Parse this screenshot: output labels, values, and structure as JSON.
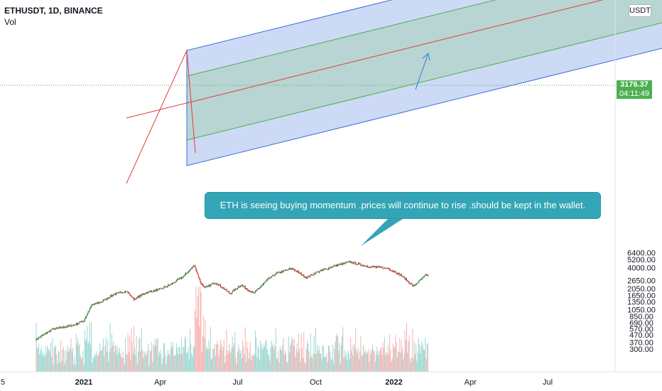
{
  "header": {
    "symbol": "ETHUSDT, 1D, BINANCE",
    "indicator": "Vol"
  },
  "price_scale": {
    "currency": "USDT",
    "last_price": "3176.37",
    "countdown": "04:11:49",
    "ticks": [
      "6400.00",
      "5200.00",
      "4000.00",
      "2650.00",
      "2050.00",
      "1650.00",
      "1350.00",
      "1050.00",
      "850.00",
      "690.00",
      "570.00",
      "470.00",
      "370.00",
      "300.00"
    ]
  },
  "time_scale": {
    "ticks": [
      "5",
      "2021",
      "Apr",
      "Jul",
      "Oct",
      "2022",
      "Apr",
      "Jul"
    ]
  },
  "annotation": {
    "text": "ETH is seeing buying momentum .prices will continue to rise .should be kept in the wallet."
  },
  "colors": {
    "up": "#26a69a",
    "down": "#ef5350",
    "candle_up": "#2e7d32",
    "candle_down": "#c62828",
    "channel_blue": "#3f6fd8",
    "channel_green": "#4caf50",
    "median_red": "#e53935",
    "callout": "#33a5b6"
  },
  "chart_data": {
    "type": "candlestick",
    "title": "ETHUSDT, 1D, BINANCE",
    "y_scale": "log",
    "ylim": [
      260,
      7000
    ],
    "price_path": [
      [
        "2020-11-05",
        400
      ],
      [
        "2020-11-25",
        560
      ],
      [
        "2020-12-20",
        640
      ],
      [
        "2021-01-01",
        740
      ],
      [
        "2021-01-10",
        1200
      ],
      [
        "2021-01-22",
        1350
      ],
      [
        "2021-02-05",
        1700
      ],
      [
        "2021-02-20",
        1900
      ],
      [
        "2021-03-01",
        1450
      ],
      [
        "2021-03-15",
        1800
      ],
      [
        "2021-04-01",
        2000
      ],
      [
        "2021-04-15",
        2400
      ],
      [
        "2021-04-28",
        3000
      ],
      [
        "2021-05-11",
        4300
      ],
      [
        "2021-05-19",
        2400
      ],
      [
        "2021-05-24",
        2100
      ],
      [
        "2021-06-05",
        2500
      ],
      [
        "2021-06-22",
        1750
      ],
      [
        "2021-07-05",
        2300
      ],
      [
        "2021-07-20",
        1750
      ],
      [
        "2021-08-05",
        2700
      ],
      [
        "2021-08-15",
        3300
      ],
      [
        "2021-09-03",
        3900
      ],
      [
        "2021-09-20",
        2900
      ],
      [
        "2021-10-01",
        3400
      ],
      [
        "2021-10-20",
        4100
      ],
      [
        "2021-11-10",
        4800
      ],
      [
        "2021-11-25",
        4300
      ],
      [
        "2021-12-05",
        4100
      ],
      [
        "2021-12-25",
        3900
      ],
      [
        "2022-01-10",
        3100
      ],
      [
        "2022-01-24",
        2200
      ],
      [
        "2022-02-07",
        3100
      ],
      [
        "2022-02-10",
        3176
      ]
    ],
    "volume_range": [
      0,
      1
    ],
    "overlays": [
      {
        "type": "pitchfork_channel",
        "upper": "blue",
        "inner": "green",
        "median": "red"
      },
      {
        "type": "arrow",
        "direction": "up",
        "color": "#3f8fd8"
      }
    ]
  }
}
